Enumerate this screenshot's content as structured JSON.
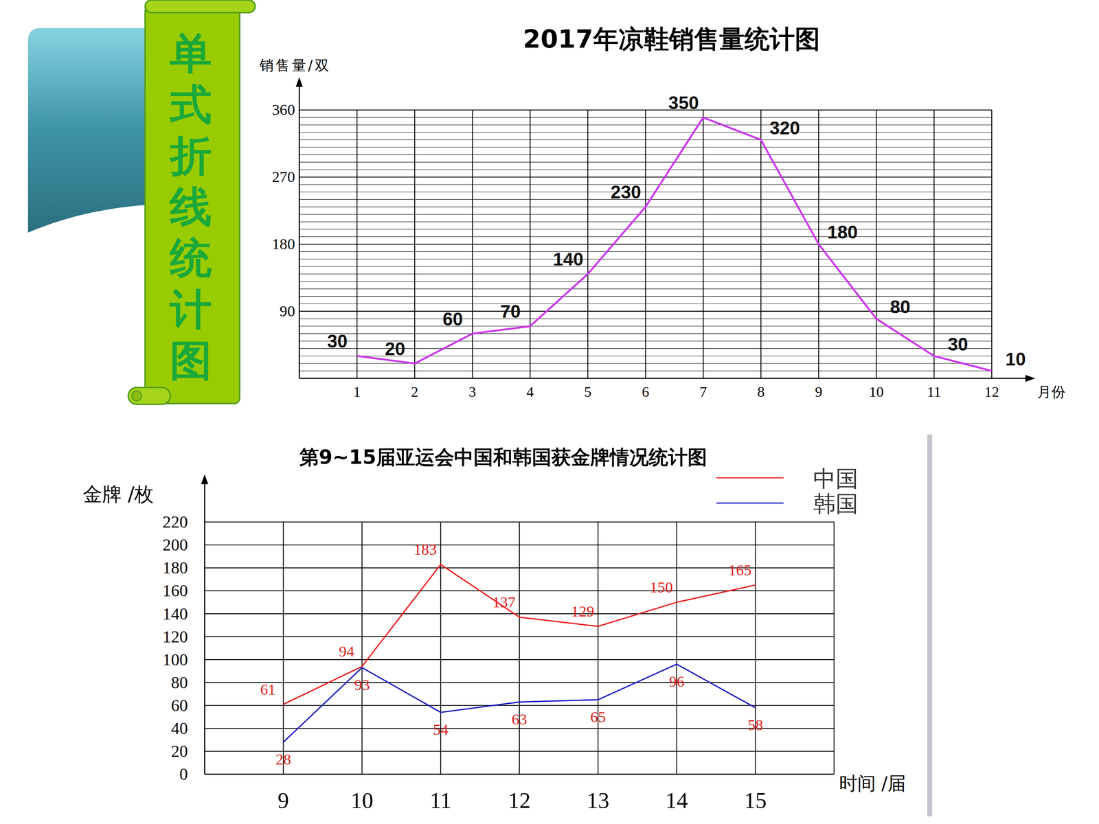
{
  "banner": {
    "title": "单式折线统计图"
  },
  "chart_data": [
    {
      "type": "line",
      "title": "2017年凉鞋销售量统计图",
      "y_label": "销售量/双",
      "x_label": "月份",
      "categories": [
        "1",
        "2",
        "3",
        "4",
        "5",
        "6",
        "7",
        "8",
        "9",
        "10",
        "11",
        "12"
      ],
      "values": [
        30,
        20,
        60,
        70,
        140,
        230,
        350,
        320,
        180,
        80,
        30,
        10
      ],
      "color": "#cc33ee",
      "ylim": [
        0,
        360
      ],
      "yticks": [
        90,
        180,
        270,
        360
      ],
      "grid": true,
      "data_labels": true
    },
    {
      "type": "line",
      "title": "第9~15届亚运会中国和韩国获金牌情况统计图",
      "y_label": "金牌 /枚",
      "x_label": "时间 /届",
      "categories": [
        "9",
        "10",
        "11",
        "12",
        "13",
        "14",
        "15"
      ],
      "series": [
        {
          "name": "中国",
          "color": "#ee1c1c",
          "values": [
            61,
            94,
            183,
            137,
            129,
            150,
            165
          ]
        },
        {
          "name": "韩国",
          "color": "#1c1cc8",
          "values": [
            28,
            93,
            54,
            63,
            65,
            96,
            58
          ]
        }
      ],
      "ylim": [
        0,
        220
      ],
      "yticks": [
        0,
        20,
        40,
        60,
        80,
        100,
        120,
        140,
        160,
        180,
        200,
        220
      ],
      "grid": true,
      "legend": "top-right",
      "data_labels": true
    }
  ]
}
